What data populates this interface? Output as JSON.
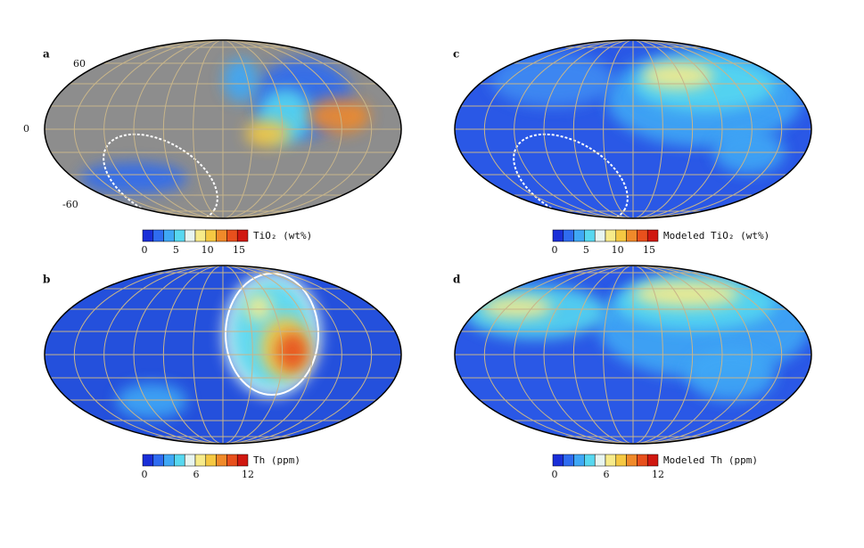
{
  "panels": [
    {
      "label": "a",
      "lat_labels": [
        "60",
        "0",
        "-60"
      ],
      "colorbar": {
        "ticks": [
          "0",
          "5",
          "10",
          "15"
        ],
        "label": "TiO₂ (wt%)"
      }
    },
    {
      "label": "b",
      "colorbar": {
        "ticks": [
          "0",
          "6",
          "12"
        ],
        "label": "Th (ppm)"
      }
    },
    {
      "label": "c",
      "colorbar": {
        "ticks": [
          "0",
          "5",
          "10",
          "15"
        ],
        "label": "Modeled TiO₂ (wt%)"
      }
    },
    {
      "label": "d",
      "colorbar": {
        "ticks": [
          "0",
          "6",
          "12"
        ],
        "label": "Modeled Th (ppm)"
      }
    }
  ]
}
